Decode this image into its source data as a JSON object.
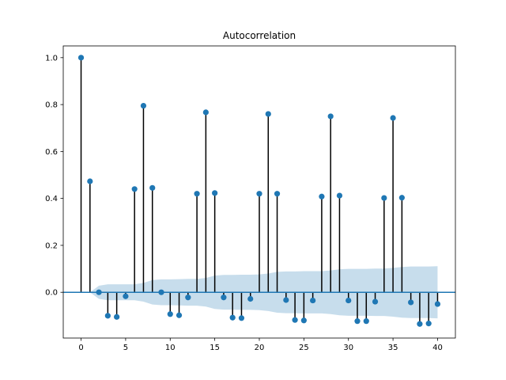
{
  "chart_data": {
    "type": "stem",
    "title": "Autocorrelation",
    "xlabel": "",
    "ylabel": "",
    "xlim": [
      -2,
      42
    ],
    "ylim": [
      -0.195,
      1.05
    ],
    "x_ticks": [
      0,
      5,
      10,
      15,
      20,
      25,
      30,
      35,
      40
    ],
    "y_ticks": [
      0.0,
      0.2,
      0.4,
      0.6,
      0.8,
      1.0
    ],
    "x_tick_labels": [
      "0",
      "5",
      "10",
      "15",
      "20",
      "25",
      "30",
      "35",
      "40"
    ],
    "y_tick_labels": [
      "0.0",
      "0.2",
      "0.4",
      "0.6",
      "0.8",
      "1.0"
    ],
    "grid": false,
    "lags": [
      0,
      1,
      2,
      3,
      4,
      5,
      6,
      7,
      8,
      9,
      10,
      11,
      12,
      13,
      14,
      15,
      16,
      17,
      18,
      19,
      20,
      21,
      22,
      23,
      24,
      25,
      26,
      27,
      28,
      29,
      30,
      31,
      32,
      33,
      34,
      35,
      36,
      37,
      38,
      39,
      40
    ],
    "values": [
      1.0,
      0.473,
      0.0,
      -0.1,
      -0.105,
      -0.017,
      0.44,
      0.795,
      0.445,
      0.0,
      -0.093,
      -0.098,
      -0.022,
      0.42,
      0.767,
      0.423,
      -0.022,
      -0.108,
      -0.11,
      -0.028,
      0.42,
      0.76,
      0.42,
      -0.033,
      -0.118,
      -0.12,
      -0.035,
      0.408,
      0.75,
      0.412,
      -0.035,
      -0.123,
      -0.123,
      -0.04,
      0.402,
      0.743,
      0.403,
      -0.043,
      -0.135,
      -0.133,
      -0.05
    ],
    "confidence_band": [
      0,
      0.0,
      0.028,
      0.034,
      0.034,
      0.034,
      0.034,
      0.04,
      0.052,
      0.055,
      0.055,
      0.056,
      0.057,
      0.057,
      0.061,
      0.071,
      0.074,
      0.074,
      0.075,
      0.075,
      0.076,
      0.08,
      0.087,
      0.089,
      0.089,
      0.09,
      0.09,
      0.09,
      0.093,
      0.098,
      0.1,
      0.1,
      0.1,
      0.101,
      0.101,
      0.104,
      0.108,
      0.11,
      0.11,
      0.11,
      0.111
    ],
    "colors": {
      "marker": "#1f77b4",
      "stem": "#000000",
      "zero_line": "#1f77b4",
      "band": "#1f77b4"
    }
  }
}
